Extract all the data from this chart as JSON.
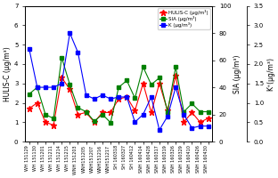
{
  "x_labels": [
    "WH 151129",
    "WH 151130",
    "WH 151201",
    "WH 151211",
    "WH 151214",
    "WH 151215",
    "WNH 151203",
    "WNH151205",
    "WNH151207",
    "WNH151216",
    "WNH151217",
    "SH 160318",
    "SH 160327",
    "SH 160412",
    "SNH 160414",
    "SNH 160428",
    "SNH 160317",
    "SNH 160319",
    "SNH 160326",
    "SNH 160329",
    "SNH 160410",
    "SNH 160426",
    "SNH 160430"
  ],
  "hulis_c": [
    1.7,
    2.0,
    1.0,
    0.85,
    3.3,
    2.7,
    1.4,
    1.5,
    1.0,
    1.5,
    1.5,
    2.2,
    2.3,
    1.6,
    3.0,
    1.5,
    3.0,
    1.6,
    3.4,
    1.0,
    1.5,
    1.0,
    1.2
  ],
  "sia": [
    35,
    40,
    20,
    17,
    62,
    42,
    25,
    22,
    15,
    20,
    14,
    40,
    45,
    32,
    55,
    42,
    47,
    22,
    55,
    22,
    28,
    22,
    22
  ],
  "k": [
    2.4,
    1.4,
    1.4,
    1.4,
    1.5,
    2.8,
    2.3,
    1.2,
    1.1,
    1.2,
    1.1,
    1.15,
    1.15,
    0.5,
    0.7,
    1.15,
    0.3,
    0.65,
    1.4,
    0.7,
    0.35,
    0.4,
    0.4
  ],
  "hulis_color": "#ff0000",
  "sia_color": "#008000",
  "k_color": "#0000ff",
  "hulis_ylim": [
    0.0,
    7.0
  ],
  "sia_ylim": [
    0,
    100
  ],
  "k_ylim": [
    0.0,
    3.5
  ],
  "hulis_yticks": [
    0.0,
    1.0,
    2.0,
    3.0,
    4.0,
    5.0,
    6.0,
    7.0
  ],
  "sia_yticks": [
    0,
    20,
    40,
    60,
    80,
    100
  ],
  "k_yticks": [
    0.0,
    0.5,
    1.0,
    1.5,
    2.0,
    2.5,
    3.0,
    3.5
  ],
  "ylabel_left": "HULIS-C (μg/m³)",
  "ylabel_right_sia": "SIA (μg/m³)",
  "ylabel_right_k": "K⁺(μg/m³)",
  "legend_hulis": "HULIS-C (μg/m³)",
  "legend_sia": "SIA (μg/m³)",
  "legend_k": "K (μg/m³)"
}
